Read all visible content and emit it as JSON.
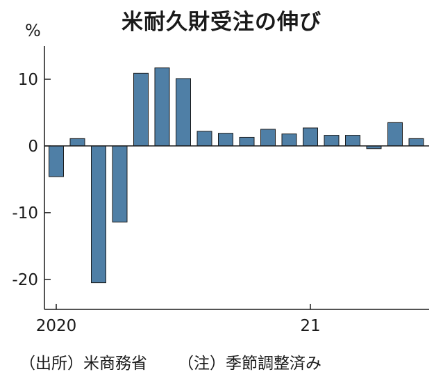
{
  "footer": {
    "source": "（出所）米商務省",
    "note": "（注）季節調整済み"
  },
  "chart_data": {
    "type": "bar",
    "title": "米耐久財受注の伸び",
    "ylabel": "%",
    "xlabel": "",
    "ylim": [
      -24.5,
      15
    ],
    "yticks": [
      10,
      0,
      -10,
      -20
    ],
    "ytick_labels": [
      "10",
      "0",
      "-10",
      "-20"
    ],
    "xtick_labels": [
      {
        "label": "2020",
        "index": 0
      },
      {
        "label": "21",
        "index": 12
      }
    ],
    "categories": [
      "2020-01",
      "2020-02",
      "2020-03",
      "2020-04",
      "2020-05",
      "2020-06",
      "2020-07",
      "2020-08",
      "2020-09",
      "2020-10",
      "2020-11",
      "2020-12",
      "2021-01",
      "2021-02",
      "2021-03",
      "2021-04",
      "2021-05",
      "2021-06"
    ],
    "values": [
      -4.6,
      1.1,
      -20.5,
      -11.4,
      10.9,
      11.7,
      10.1,
      2.2,
      1.9,
      1.3,
      2.5,
      1.8,
      2.7,
      1.6,
      1.6,
      -0.4,
      3.5,
      1.1
    ],
    "bar_color": "#4f7fa6",
    "bar_edge_color": "#1a1a1a",
    "grid": false
  }
}
